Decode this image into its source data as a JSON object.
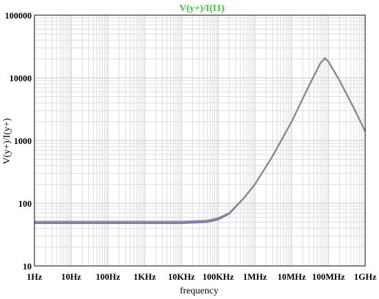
{
  "chart_data": {
    "type": "line",
    "title": "V(y+)/I(I1)",
    "xlabel": "frequency",
    "ylabel": "V(y+)/I(y+)",
    "x_scale": "log",
    "y_scale": "log",
    "xlim": [
      1,
      1000000000
    ],
    "ylim": [
      10,
      100000
    ],
    "x_ticks": [
      "1Hz",
      "10Hz",
      "100Hz",
      "1KHz",
      "10KHz",
      "100KHz",
      "1MHz",
      "10MHz",
      "100MHz",
      "1GHz"
    ],
    "y_ticks": [
      "10",
      "100",
      "1000",
      "10000",
      "100000"
    ],
    "grid": true,
    "series": [
      {
        "color": "#7a6fc8",
        "x": [
          1,
          10,
          100,
          1000,
          10000,
          50000,
          100000,
          200000,
          500000,
          1000000,
          3000000,
          10000000,
          30000000,
          60000000,
          80000000,
          100000000,
          200000000,
          500000000,
          1000000000
        ],
        "y": [
          48,
          48,
          48,
          48,
          48,
          50,
          55,
          68,
          120,
          200,
          560,
          2000,
          7600,
          17000,
          20500,
          18000,
          9000,
          3200,
          1400
        ]
      },
      {
        "color": "#8a8a8a",
        "x": [
          1,
          10,
          100,
          1000,
          10000,
          50000,
          100000,
          200000,
          500000,
          1000000,
          3000000,
          10000000,
          30000000,
          60000000,
          80000000,
          100000000,
          200000000,
          500000000,
          1000000000
        ],
        "y": [
          51,
          51,
          51,
          51,
          51,
          53,
          58,
          70,
          122,
          202,
          565,
          2020,
          7700,
          17200,
          20800,
          18200,
          9100,
          3250,
          1400
        ]
      }
    ],
    "colors": {
      "title": "#33cc33",
      "grid_minor": "#dcdcdc",
      "grid_major": "#c8c8c8",
      "axes": "#000000"
    }
  }
}
